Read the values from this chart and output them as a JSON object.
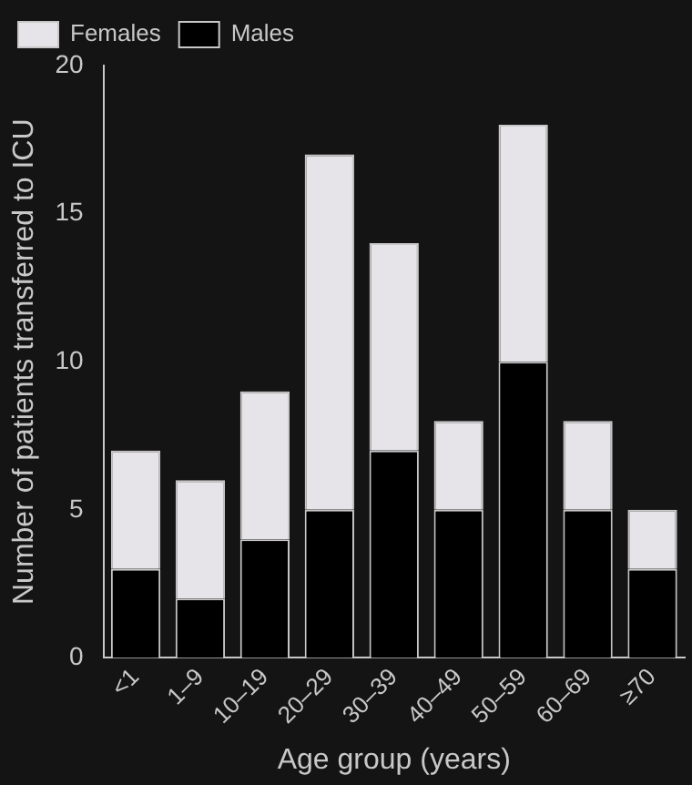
{
  "chart_data": {
    "type": "bar",
    "stacked": true,
    "xlabel": "Age group (years)",
    "ylabel": "Number of patients transferred to ICU",
    "categories": [
      "<1",
      "1–9",
      "10–19",
      "20–29",
      "30–39",
      "40–49",
      "50–59",
      "60–69",
      "≥70"
    ],
    "series": [
      {
        "name": "Males",
        "color": "#000000",
        "values": [
          3,
          2,
          4,
          5,
          7,
          5,
          10,
          5,
          3
        ]
      },
      {
        "name": "Females",
        "color": "#e6e4e8",
        "values": [
          4,
          4,
          5,
          12,
          7,
          3,
          8,
          3,
          2
        ]
      }
    ],
    "ylim": [
      0,
      20
    ],
    "yticks": [
      0,
      5,
      10,
      15,
      20
    ],
    "grid": false,
    "legend": "top left"
  }
}
